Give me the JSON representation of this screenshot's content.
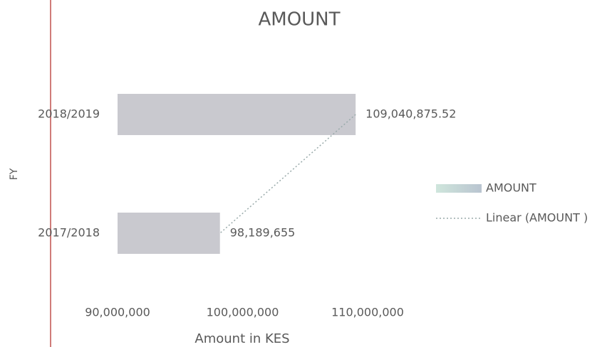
{
  "chart_data": {
    "type": "bar",
    "orientation": "horizontal",
    "title": "AMOUNT",
    "xlabel": "Amount in KES",
    "ylabel": "FY",
    "categories": [
      "2018/2019",
      "2017/2018"
    ],
    "series": [
      {
        "name": "AMOUNT",
        "color": "#c9c9cf",
        "values": [
          109040875.52,
          98189655
        ],
        "value_labels": [
          "109,040,875.52",
          "98,189,655"
        ]
      }
    ],
    "trendline": {
      "name": "Linear (AMOUNT )"
    },
    "xlim": [
      90000000,
      110000000
    ],
    "xticks": [
      {
        "value": 90000000,
        "label": "90,000,000"
      },
      {
        "value": 100000000,
        "label": "100,000,000"
      },
      {
        "value": 110000000,
        "label": "110,000,000"
      }
    ],
    "legend": "right"
  }
}
